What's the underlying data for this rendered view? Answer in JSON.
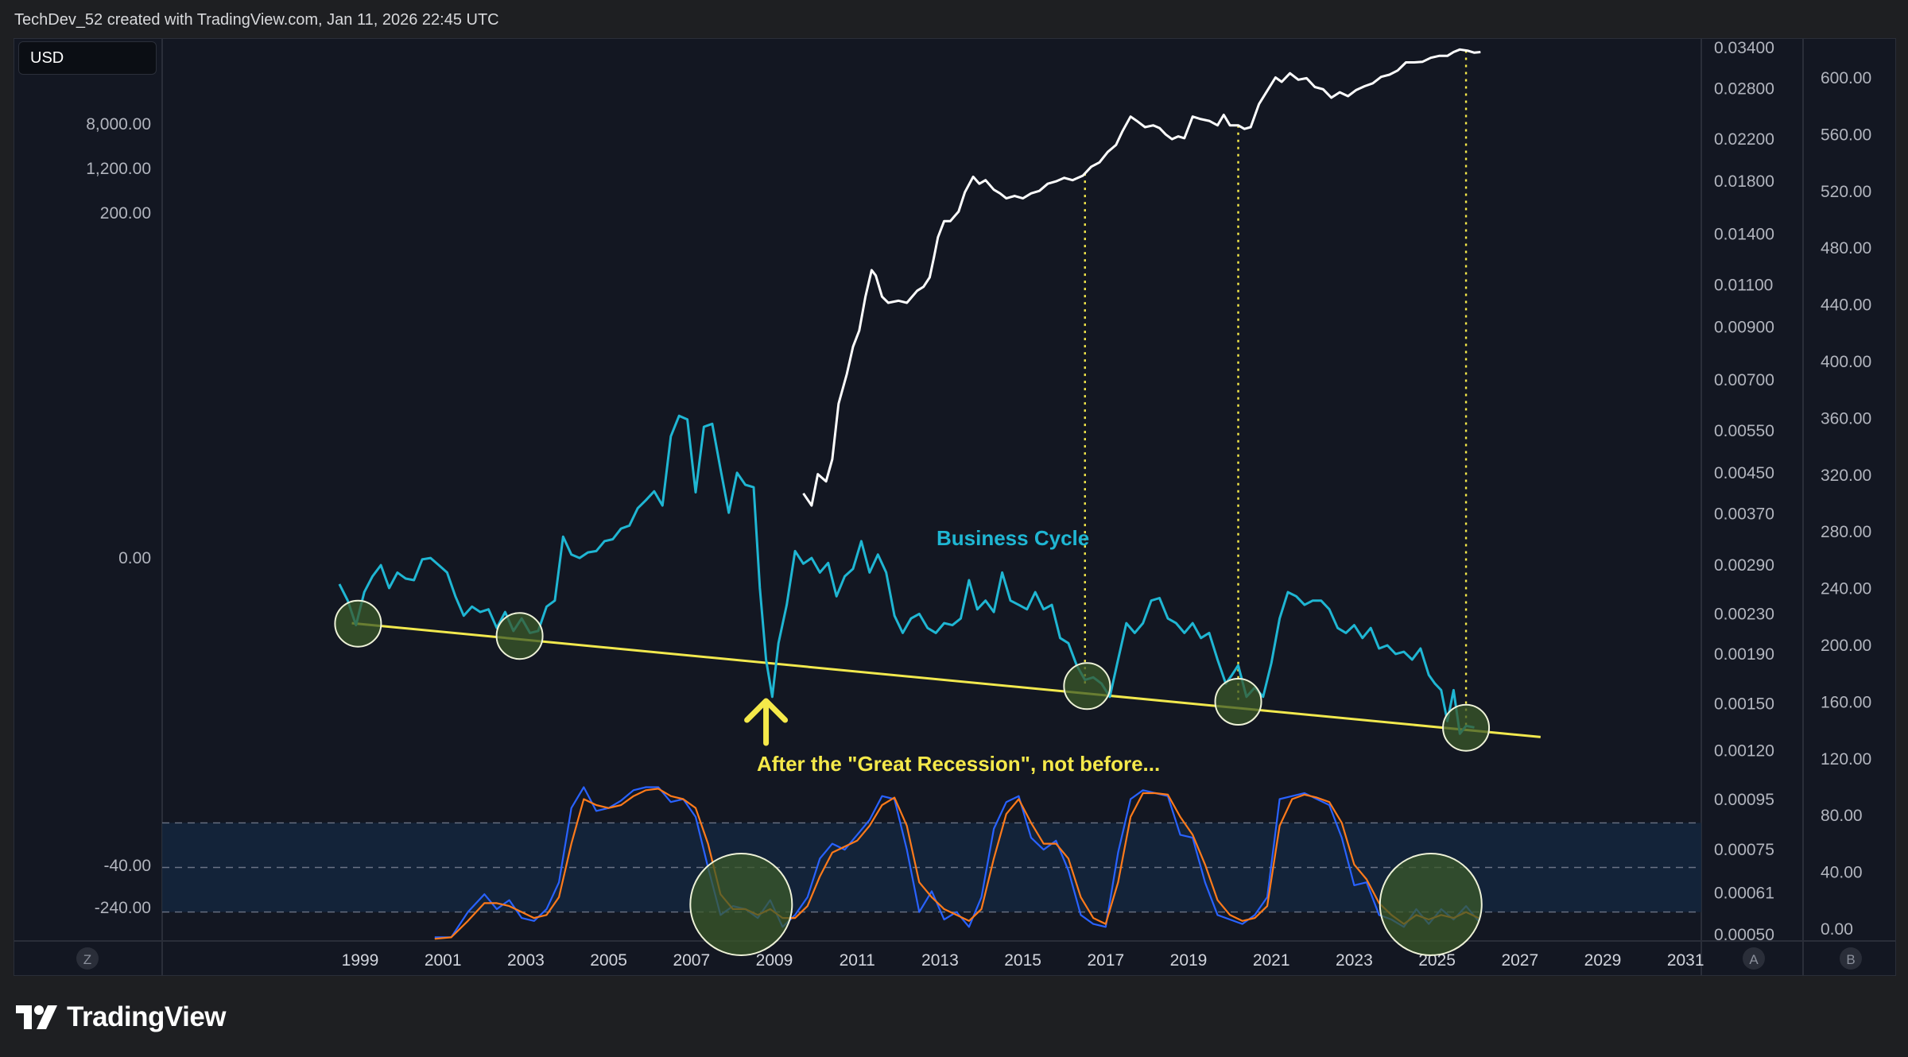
{
  "header": {
    "credit": "TechDev_52 created with TradingView.com, Jan 11, 2026 22:45 UTC"
  },
  "toolbar": {
    "currency_label": "USD"
  },
  "brand": {
    "name": "TradingView"
  },
  "colors": {
    "background": "#131722",
    "white_series": "#ffffff",
    "business_cycle": "#1fb6d3",
    "trendline": "#f2e94e",
    "annotation_yellow": "#f5e94a",
    "stoch_k": "#2962ff",
    "stoch_d": "#ff7a1a",
    "band_fill": "#14263d",
    "circle_fill": "#3b5a2a"
  },
  "chart_data": {
    "type": "line",
    "x_ticks": [
      "1999",
      "2001",
      "2003",
      "2005",
      "2007",
      "2009",
      "2011",
      "2013",
      "2015",
      "2017",
      "2019",
      "2021",
      "2023",
      "2025",
      "2027",
      "2029",
      "2031"
    ],
    "left_axis_labels": [
      "8,000.00",
      "1,200.00",
      "200.00",
      "0.00",
      "-40.00",
      "-240.00"
    ],
    "right_axis_a_labels": [
      "0.03400",
      "0.02800",
      "0.02200",
      "0.01800",
      "0.01400",
      "0.01100",
      "0.00900",
      "0.00700",
      "0.00550",
      "0.00450",
      "0.00370",
      "0.00290",
      "0.00230",
      "0.00190",
      "0.00150",
      "0.00120",
      "0.00095",
      "0.00075",
      "0.00061",
      "0.00050"
    ],
    "right_axis_b_labels": [
      "600.00",
      "560.00",
      "520.00",
      "480.00",
      "440.00",
      "400.00",
      "360.00",
      "320.00",
      "280.00",
      "240.00",
      "200.00",
      "160.00",
      "120.00",
      "80.00",
      "40.00",
      "0.00"
    ],
    "axis_markers": {
      "left": "Z",
      "right_a": "A",
      "right_b": "B"
    },
    "annotations": {
      "series_label": "Business Cycle",
      "recession_note": "After the \"Great Recession\", not before..."
    },
    "series": [
      {
        "key": "price",
        "x": [
          2009.7,
          2009.9,
          2010.05,
          2010.25,
          2010.4,
          2010.55,
          2010.75,
          2010.9,
          2011.05,
          2011.2,
          2011.35,
          2011.45,
          2011.6,
          2011.75,
          2012.0,
          2012.2,
          2012.45,
          2012.6,
          2012.75,
          2012.85,
          2012.95,
          2013.1,
          2013.25,
          2013.45,
          2013.6,
          2013.8,
          2013.95,
          2014.1,
          2014.3,
          2014.45,
          2014.6,
          2014.8,
          2015.0,
          2015.2,
          2015.4,
          2015.6,
          2015.8,
          2016.0,
          2016.2,
          2016.45,
          2016.65,
          2016.85,
          2017.05,
          2017.25,
          2017.4,
          2017.6,
          2017.75,
          2017.95,
          2018.15,
          2018.3,
          2018.45,
          2018.6,
          2018.75,
          2018.9,
          2019.1,
          2019.3,
          2019.5,
          2019.7,
          2019.85,
          2020.0,
          2020.2,
          2020.35,
          2020.5,
          2020.7,
          2020.9,
          2021.1,
          2021.25,
          2021.45,
          2021.65,
          2021.85,
          2022.05,
          2022.25,
          2022.45,
          2022.65,
          2022.85,
          2023.05,
          2023.25,
          2023.45,
          2023.65,
          2023.85,
          2024.05,
          2024.25,
          2024.45,
          2024.65,
          2024.85,
          2025.05,
          2025.25,
          2025.4,
          2025.55,
          2025.75,
          2025.9,
          2026.05
        ],
        "y": [
          0.00408,
          0.00385,
          0.00447,
          0.00432,
          0.0048,
          0.00625,
          0.0072,
          0.0082,
          0.00885,
          0.0104,
          0.0118,
          0.0115,
          0.0104,
          0.0101,
          0.0102,
          0.0101,
          0.0107,
          0.0109,
          0.0114,
          0.0125,
          0.0138,
          0.0149,
          0.0149,
          0.0156,
          0.0171,
          0.0184,
          0.0178,
          0.0181,
          0.0173,
          0.017,
          0.0166,
          0.0168,
          0.0166,
          0.017,
          0.0172,
          0.0178,
          0.018,
          0.0183,
          0.0181,
          0.0185,
          0.0193,
          0.0197,
          0.0207,
          0.0214,
          0.0228,
          0.0245,
          0.024,
          0.0233,
          0.0235,
          0.0232,
          0.0225,
          0.022,
          0.0223,
          0.0221,
          0.0245,
          0.0242,
          0.024,
          0.0235,
          0.0247,
          0.0235,
          0.0235,
          0.0231,
          0.0233,
          0.026,
          0.0277,
          0.0295,
          0.0289,
          0.0301,
          0.0292,
          0.0294,
          0.0282,
          0.0279,
          0.0268,
          0.0275,
          0.027,
          0.0278,
          0.0283,
          0.0287,
          0.0296,
          0.0299,
          0.0305,
          0.0317,
          0.0317,
          0.0318,
          0.0324,
          0.0327,
          0.0327,
          0.0333,
          0.0337,
          0.0335,
          0.0332,
          0.0333
        ]
      },
      {
        "key": "business_cycle",
        "name": "Business Cycle",
        "x": [
          1998.5,
          1998.7,
          1998.9,
          1999.1,
          1999.3,
          1999.5,
          1999.7,
          1999.9,
          2000.1,
          2000.3,
          2000.5,
          2000.7,
          2000.9,
          2001.1,
          2001.3,
          2001.5,
          2001.7,
          2001.9,
          2002.1,
          2002.3,
          2002.5,
          2002.7,
          2002.9,
          2003.1,
          2003.3,
          2003.5,
          2003.7,
          2003.9,
          2004.1,
          2004.3,
          2004.5,
          2004.7,
          2004.9,
          2005.1,
          2005.3,
          2005.5,
          2005.7,
          2005.9,
          2006.1,
          2006.3,
          2006.5,
          2006.7,
          2006.9,
          2007.1,
          2007.3,
          2007.5,
          2007.7,
          2007.9,
          2008.1,
          2008.3,
          2008.5,
          2008.65,
          2008.8,
          2008.95,
          2009.1,
          2009.3,
          2009.5,
          2009.7,
          2009.9,
          2010.1,
          2010.3,
          2010.5,
          2010.7,
          2010.9,
          2011.1,
          2011.3,
          2011.5,
          2011.7,
          2011.9,
          2012.1,
          2012.3,
          2012.5,
          2012.7,
          2012.9,
          2013.1,
          2013.3,
          2013.5,
          2013.7,
          2013.9,
          2014.1,
          2014.3,
          2014.5,
          2014.7,
          2014.9,
          2015.1,
          2015.3,
          2015.5,
          2015.7,
          2015.9,
          2016.1,
          2016.3,
          2016.5,
          2016.7,
          2016.9,
          2017.1,
          2017.3,
          2017.5,
          2017.7,
          2017.9,
          2018.1,
          2018.3,
          2018.5,
          2018.7,
          2018.9,
          2019.1,
          2019.3,
          2019.5,
          2019.7,
          2019.9,
          2020.05,
          2020.2,
          2020.4,
          2020.6,
          2020.8,
          2021.0,
          2021.2,
          2021.4,
          2021.6,
          2021.8,
          2022.0,
          2022.2,
          2022.4,
          2022.6,
          2022.8,
          2023.0,
          2023.2,
          2023.4,
          2023.6,
          2023.8,
          2024.0,
          2024.2,
          2024.4,
          2024.6,
          2024.8,
          2024.95,
          2025.1,
          2025.25,
          2025.4,
          2025.55,
          2025.7,
          2025.9
        ],
        "y": [
          0.00265,
          0.00245,
          0.00218,
          0.00255,
          0.00275,
          0.0029,
          0.0026,
          0.0028,
          0.00272,
          0.0027,
          0.00298,
          0.003,
          0.0029,
          0.0028,
          0.0025,
          0.00228,
          0.00238,
          0.00232,
          0.00235,
          0.00215,
          0.00232,
          0.00212,
          0.00225,
          0.0021,
          0.00212,
          0.00238,
          0.00245,
          0.00332,
          0.00305,
          0.003,
          0.00308,
          0.0031,
          0.00325,
          0.00328,
          0.00345,
          0.0035,
          0.0038,
          0.00395,
          0.00412,
          0.00385,
          0.00535,
          0.0059,
          0.0058,
          0.0041,
          0.0056,
          0.00568,
          0.00458,
          0.00372,
          0.0045,
          0.00425,
          0.0042,
          0.0026,
          0.00185,
          0.00155,
          0.002,
          0.0024,
          0.0031,
          0.00292,
          0.003,
          0.0028,
          0.00293,
          0.0025,
          0.00275,
          0.00285,
          0.00325,
          0.0028,
          0.00305,
          0.0028,
          0.00228,
          0.0021,
          0.00225,
          0.0023,
          0.00215,
          0.0021,
          0.0022,
          0.00218,
          0.00225,
          0.0027,
          0.00235,
          0.00245,
          0.00232,
          0.0028,
          0.00245,
          0.0024,
          0.00235,
          0.00255,
          0.00235,
          0.0024,
          0.00205,
          0.002,
          0.0018,
          0.00168,
          0.0017,
          0.00165,
          0.00155,
          0.00185,
          0.0022,
          0.0021,
          0.0022,
          0.00245,
          0.00248,
          0.00225,
          0.0022,
          0.0021,
          0.0022,
          0.00205,
          0.0021,
          0.00185,
          0.00165,
          0.00172,
          0.0018,
          0.00155,
          0.00162,
          0.00155,
          0.00182,
          0.00225,
          0.00255,
          0.0025,
          0.0024,
          0.00245,
          0.00245,
          0.00235,
          0.00215,
          0.0021,
          0.00218,
          0.00205,
          0.00215,
          0.00195,
          0.00198,
          0.0019,
          0.00192,
          0.00185,
          0.00195,
          0.00172,
          0.00165,
          0.0016,
          0.00138,
          0.0016,
          0.0013,
          0.00135,
          0.00134
        ]
      },
      {
        "key": "trendline",
        "x": [
          1998.8,
          2027.5
        ],
        "y": [
          0.0022,
          0.00128
        ]
      },
      {
        "key": "stoch_k",
        "x": [
          2000.8,
          2001.2,
          2001.6,
          2002.0,
          2002.3,
          2002.6,
          2002.9,
          2003.2,
          2003.5,
          2003.8,
          2004.1,
          2004.4,
          2004.7,
          2005.0,
          2005.3,
          2005.6,
          2005.9,
          2006.2,
          2006.5,
          2006.8,
          2007.1,
          2007.4,
          2007.7,
          2008.0,
          2008.3,
          2008.6,
          2008.9,
          2009.2,
          2009.5,
          2009.8,
          2010.1,
          2010.4,
          2010.7,
          2011.0,
          2011.3,
          2011.6,
          2011.9,
          2012.2,
          2012.5,
          2012.8,
          2013.1,
          2013.4,
          2013.7,
          2014.0,
          2014.3,
          2014.6,
          2014.9,
          2015.2,
          2015.5,
          2015.8,
          2016.1,
          2016.4,
          2016.7,
          2017.0,
          2017.3,
          2017.6,
          2017.9,
          2018.2,
          2018.5,
          2018.8,
          2019.1,
          2019.4,
          2019.7,
          2020.0,
          2020.3,
          2020.6,
          2020.9,
          2021.2,
          2021.5,
          2021.8,
          2022.1,
          2022.4,
          2022.7,
          2023.0,
          2023.3,
          2023.6,
          2023.9,
          2024.2,
          2024.5,
          2024.8,
          2025.1,
          2025.4,
          2025.7,
          2026.0
        ],
        "y": [
          3,
          3,
          20,
          32,
          22,
          28,
          16,
          14,
          22,
          40,
          90,
          104,
          88,
          90,
          95,
          102,
          104,
          104,
          94,
          96,
          84,
          50,
          18,
          24,
          22,
          16,
          28,
          10,
          18,
          30,
          56,
          66,
          62,
          72,
          82,
          98,
          96,
          62,
          20,
          34,
          15,
          20,
          10,
          30,
          76,
          94,
          98,
          70,
          62,
          68,
          48,
          18,
          12,
          10,
          60,
          96,
          102,
          100,
          98,
          72,
          70,
          40,
          18,
          15,
          12,
          18,
          30,
          96,
          98,
          100,
          96,
          92,
          70,
          38,
          40,
          18,
          15,
          10,
          22,
          12,
          22,
          15,
          24,
          14
        ],
        "scale": [
          0,
          100
        ]
      },
      {
        "key": "stoch_d",
        "x": [
          2000.8,
          2001.2,
          2001.6,
          2002.0,
          2002.3,
          2002.6,
          2002.9,
          2003.2,
          2003.5,
          2003.8,
          2004.1,
          2004.4,
          2004.7,
          2005.0,
          2005.3,
          2005.6,
          2005.9,
          2006.2,
          2006.5,
          2006.8,
          2007.1,
          2007.4,
          2007.7,
          2008.0,
          2008.3,
          2008.6,
          2008.9,
          2009.2,
          2009.5,
          2009.8,
          2010.1,
          2010.4,
          2010.7,
          2011.0,
          2011.3,
          2011.6,
          2011.9,
          2012.2,
          2012.5,
          2012.8,
          2013.1,
          2013.4,
          2013.7,
          2014.0,
          2014.3,
          2014.6,
          2014.9,
          2015.2,
          2015.5,
          2015.8,
          2016.1,
          2016.4,
          2016.7,
          2017.0,
          2017.3,
          2017.6,
          2017.9,
          2018.2,
          2018.5,
          2018.8,
          2019.1,
          2019.4,
          2019.7,
          2020.0,
          2020.3,
          2020.6,
          2020.9,
          2021.2,
          2021.5,
          2021.8,
          2022.1,
          2022.4,
          2022.7,
          2023.0,
          2023.3,
          2023.6,
          2023.9,
          2024.2,
          2024.5,
          2024.8,
          2025.1,
          2025.4,
          2025.7,
          2026.0
        ],
        "y": [
          2,
          3,
          14,
          26,
          26,
          24,
          20,
          16,
          18,
          30,
          66,
          96,
          92,
          90,
          92,
          98,
          102,
          103,
          98,
          96,
          90,
          66,
          32,
          22,
          22,
          18,
          22,
          16,
          16,
          24,
          44,
          60,
          64,
          68,
          78,
          92,
          97,
          78,
          40,
          30,
          22,
          18,
          14,
          22,
          56,
          86,
          96,
          80,
          66,
          66,
          56,
          30,
          16,
          12,
          40,
          84,
          100,
          100,
          99,
          84,
          72,
          52,
          28,
          18,
          14,
          16,
          24,
          78,
          96,
          99,
          97,
          94,
          80,
          52,
          42,
          26,
          18,
          12,
          18,
          15,
          18,
          16,
          20,
          16
        ],
        "scale": [
          0,
          100
        ]
      }
    ],
    "highlight_circles": {
      "trend_touches_x": [
        1998.95,
        2002.85,
        2016.55,
        2020.2,
        2025.7
      ],
      "stoch_lows_x": [
        2008.2,
        2024.85
      ]
    },
    "vertical_guides_x": [
      2016.5,
      2020.2,
      2025.7
    ],
    "arrow_x": 2008.8,
    "overbought_band": [
      20,
      80
    ],
    "midline": 50
  }
}
